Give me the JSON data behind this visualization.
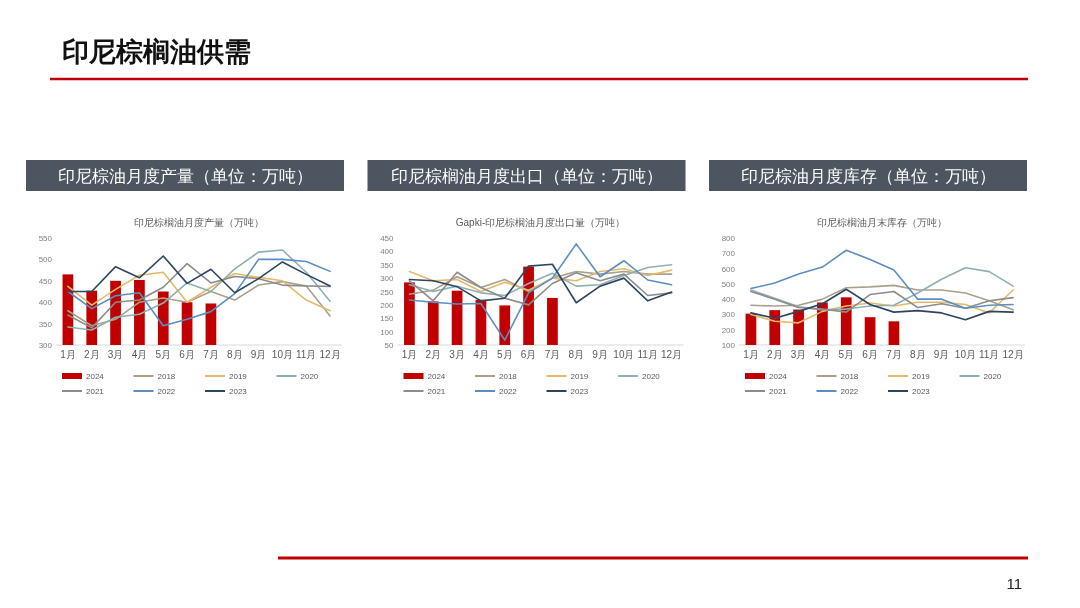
{
  "chart_data": [
    {
      "type": "other",
      "title": "印尼棕榈油供需",
      "annotations": [
        "11"
      ]
    },
    {
      "type": "bar",
      "title": "印尼棕油月度产量（单位：万吨）",
      "subtitle": "印尼棕榈油月度产量（万吨）",
      "categories": [
        "1月",
        "2月",
        "3月",
        "4月",
        "5月",
        "6月",
        "7月",
        "8月",
        "9月",
        "10月",
        "11月",
        "12月"
      ],
      "ylim": [
        300,
        550
      ],
      "yticks": [
        300,
        350,
        400,
        450,
        500,
        550
      ],
      "legend": "bottom",
      "series": [
        {
          "name": "2024",
          "color": "#c00000",
          "values": [
            465,
            427,
            450,
            452,
            425,
            400,
            397,
            null,
            null,
            null,
            null,
            null
          ]
        },
        {
          "name": "2018",
          "type": "line",
          "color": "#a9a18c",
          "values": [
            380,
            345,
            360,
            400,
            410,
            400,
            425,
            405,
            440,
            448,
            438,
            368
          ]
        },
        {
          "name": "2019",
          "type": "line",
          "color": "#e6b96a",
          "values": [
            437,
            393,
            430,
            463,
            470,
            400,
            435,
            467,
            458,
            450,
            405,
            380
          ]
        },
        {
          "name": "2020",
          "type": "line",
          "color": "#8fb0b3",
          "values": [
            342,
            335,
            365,
            372,
            398,
            445,
            425,
            478,
            517,
            522,
            470,
            402
          ]
        },
        {
          "name": "2021",
          "type": "line",
          "color": "#8c8c8c",
          "values": [
            370,
            340,
            400,
            405,
            435,
            490,
            445,
            460,
            455,
            440,
            438,
            437
          ]
        },
        {
          "name": "2022",
          "type": "line",
          "color": "#5b8ec2",
          "values": [
            425,
            385,
            415,
            422,
            345,
            360,
            378,
            420,
            500,
            500,
            495,
            472
          ]
        },
        {
          "name": "2023",
          "type": "line",
          "color": "#2c4661",
          "values": [
            425,
            425,
            483,
            457,
            508,
            444,
            477,
            422,
            455,
            494,
            465,
            438
          ]
        }
      ]
    },
    {
      "type": "bar",
      "title": "印尼棕榈油月度出口（单位：万吨）",
      "subtitle": "Gapki-印尼棕榈油月度出口量（万吨）",
      "categories": [
        "1月",
        "2月",
        "3月",
        "4月",
        "5月",
        "6月",
        "7月",
        "8月",
        "9月",
        "10月",
        "11月",
        "12月"
      ],
      "ylim": [
        50,
        450
      ],
      "yticks": [
        50,
        100,
        150,
        200,
        250,
        300,
        350,
        400,
        450
      ],
      "legend": "bottom",
      "series": [
        {
          "name": "2024",
          "color": "#c00000",
          "values": [
            284,
            213,
            253,
            219,
            198,
            343,
            226,
            null,
            null,
            null,
            null,
            null
          ]
        },
        {
          "name": "2018",
          "type": "line",
          "color": "#a9a18c",
          "values": [
            240,
            255,
            305,
            265,
            295,
            250,
            300,
            325,
            315,
            325,
            315,
            315
          ]
        },
        {
          "name": "2019",
          "type": "line",
          "color": "#e6b96a",
          "values": [
            325,
            290,
            295,
            250,
            285,
            255,
            300,
            290,
            325,
            335,
            310,
            330
          ]
        },
        {
          "name": "2020",
          "type": "line",
          "color": "#8fb0b3",
          "values": [
            275,
            250,
            270,
            245,
            235,
            280,
            318,
            270,
            275,
            310,
            340,
            350
          ]
        },
        {
          "name": "2021",
          "type": "line",
          "color": "#8c8c8c",
          "values": [
            290,
            215,
            322,
            265,
            225,
            200,
            280,
            320,
            290,
            315,
            235,
            245
          ]
        },
        {
          "name": "2022",
          "type": "line",
          "color": "#5b8ec2",
          "values": [
            218,
            210,
            203,
            205,
            68,
            245,
            300,
            428,
            305,
            365,
            293,
            275
          ]
        },
        {
          "name": "2023",
          "type": "line",
          "color": "#2c4661",
          "values": [
            295,
            290,
            268,
            215,
            225,
            345,
            352,
            208,
            270,
            300,
            215,
            248
          ]
        }
      ]
    },
    {
      "type": "bar",
      "title": "印尼棕油月度库存（单位：万吨）",
      "subtitle": "印尼棕榈油月末库存（万吨）",
      "categories": [
        "1月",
        "2月",
        "3月",
        "4月",
        "5月",
        "6月",
        "7月",
        "8月",
        "9月",
        "10月",
        "11月",
        "12月"
      ],
      "ylim": [
        100,
        800
      ],
      "yticks": [
        100,
        200,
        300,
        400,
        500,
        600,
        700,
        800
      ],
      "legend": "bottom",
      "series": [
        {
          "name": "2024",
          "color": "#c00000",
          "values": [
            305,
            328,
            332,
            378,
            412,
            282,
            255,
            null,
            null,
            null,
            null,
            null
          ]
        },
        {
          "name": "2018",
          "type": "line",
          "color": "#a9a18c",
          "values": [
            360,
            355,
            360,
            400,
            475,
            480,
            490,
            460,
            460,
            440,
            390,
            330
          ]
        },
        {
          "name": "2019",
          "type": "line",
          "color": "#e6b96a",
          "values": [
            300,
            255,
            245,
            320,
            355,
            375,
            355,
            380,
            380,
            365,
            310,
            460
          ]
        },
        {
          "name": "2020",
          "type": "line",
          "color": "#8fb0b3",
          "values": [
            460,
            405,
            350,
            330,
            335,
            355,
            360,
            440,
            530,
            605,
            580,
            485
          ]
        },
        {
          "name": "2021",
          "type": "line",
          "color": "#8c8c8c",
          "values": [
            450,
            400,
            345,
            335,
            315,
            430,
            450,
            345,
            370,
            340,
            390,
            410
          ]
        },
        {
          "name": "2022",
          "type": "line",
          "color": "#5b8ec2",
          "values": [
            470,
            505,
            565,
            610,
            720,
            660,
            590,
            400,
            400,
            340,
            360,
            365
          ]
        },
        {
          "name": "2023",
          "type": "line",
          "color": "#2c4661",
          "values": [
            310,
            275,
            320,
            370,
            465,
            365,
            315,
            325,
            310,
            265,
            320,
            315
          ]
        }
      ]
    }
  ]
}
